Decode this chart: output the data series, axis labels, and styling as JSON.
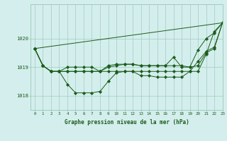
{
  "title": "Graphe pression niveau de la mer (hPa)",
  "bg_color": "#d4eeed",
  "grid_color": "#a0ccbc",
  "line_color": "#1a5c1a",
  "marker_color": "#1a5c1a",
  "xlim": [
    -0.5,
    23
  ],
  "ylim": [
    1017.5,
    1021.2
  ],
  "yticks": [
    1018,
    1019,
    1020
  ],
  "xticks": [
    0,
    1,
    2,
    3,
    4,
    5,
    6,
    7,
    8,
    9,
    10,
    11,
    12,
    13,
    14,
    15,
    16,
    17,
    18,
    19,
    20,
    21,
    22,
    23
  ],
  "series": [
    {
      "x": [
        0,
        1,
        2,
        3,
        4,
        5,
        6,
        7,
        8,
        9,
        10,
        11,
        12,
        13,
        14,
        15,
        16,
        17,
        18,
        19,
        20,
        21,
        22,
        23
      ],
      "y": [
        1019.65,
        1019.05,
        1018.85,
        1018.85,
        1018.4,
        1018.1,
        1018.1,
        1018.1,
        1018.15,
        1018.5,
        1018.8,
        1018.85,
        1018.85,
        1018.7,
        1018.7,
        1018.65,
        1018.65,
        1018.65,
        1018.65,
        1018.85,
        1018.85,
        1019.45,
        1020.25,
        1020.55
      ],
      "has_markers": true
    },
    {
      "x": [
        0,
        1,
        2,
        3,
        4,
        5,
        6,
        7,
        8,
        9,
        10,
        11,
        12,
        13,
        14,
        15,
        16,
        17,
        18,
        19,
        20,
        21,
        22,
        23
      ],
      "y": [
        1019.65,
        1019.05,
        1018.85,
        1018.85,
        1018.85,
        1018.85,
        1018.85,
        1018.85,
        1018.85,
        1018.85,
        1018.85,
        1018.85,
        1018.85,
        1018.85,
        1018.85,
        1018.85,
        1018.85,
        1018.85,
        1018.85,
        1018.85,
        1019.2,
        1019.55,
        1019.7,
        1020.55
      ],
      "has_markers": true
    },
    {
      "x": [
        0,
        1,
        2,
        3,
        4,
        5,
        6,
        7,
        8,
        9,
        10,
        11,
        12,
        13,
        14,
        15,
        16,
        17,
        18,
        19,
        20,
        21,
        22,
        23
      ],
      "y": [
        1019.65,
        1019.05,
        1018.85,
        1018.85,
        1018.85,
        1018.85,
        1018.85,
        1018.85,
        1018.85,
        1019.0,
        1019.05,
        1019.1,
        1019.1,
        1019.05,
        1019.05,
        1019.05,
        1019.05,
        1019.05,
        1019.05,
        1019.0,
        1019.6,
        1020.0,
        1020.2,
        1020.55
      ],
      "has_markers": true
    },
    {
      "x": [
        0,
        1,
        2,
        3,
        4,
        5,
        6,
        7,
        8,
        9,
        10,
        11,
        12,
        13,
        14,
        15,
        16,
        17,
        18,
        19,
        20,
        21,
        22,
        23
      ],
      "y": [
        1019.65,
        1019.05,
        1018.85,
        1018.85,
        1019.0,
        1019.0,
        1019.0,
        1019.0,
        1018.85,
        1019.05,
        1019.1,
        1019.1,
        1019.1,
        1019.05,
        1019.05,
        1019.05,
        1019.05,
        1019.35,
        1019.0,
        1019.0,
        1019.05,
        1019.5,
        1019.65,
        1020.55
      ],
      "has_markers": true
    },
    {
      "x": [
        0,
        23
      ],
      "y": [
        1019.65,
        1020.55
      ],
      "has_markers": false
    }
  ]
}
